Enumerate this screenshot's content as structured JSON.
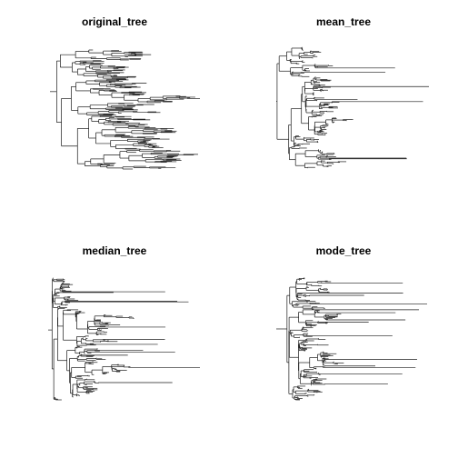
{
  "figure": {
    "panels": [
      {
        "id": "original",
        "title": "original_tree"
      },
      {
        "id": "mean",
        "title": "mean_tree"
      },
      {
        "id": "median",
        "title": "median_tree"
      },
      {
        "id": "mode",
        "title": "mode_tree"
      }
    ],
    "colors": {
      "background": "#ffffff",
      "branch": "#1a1a1a",
      "title": "#000000"
    }
  }
}
